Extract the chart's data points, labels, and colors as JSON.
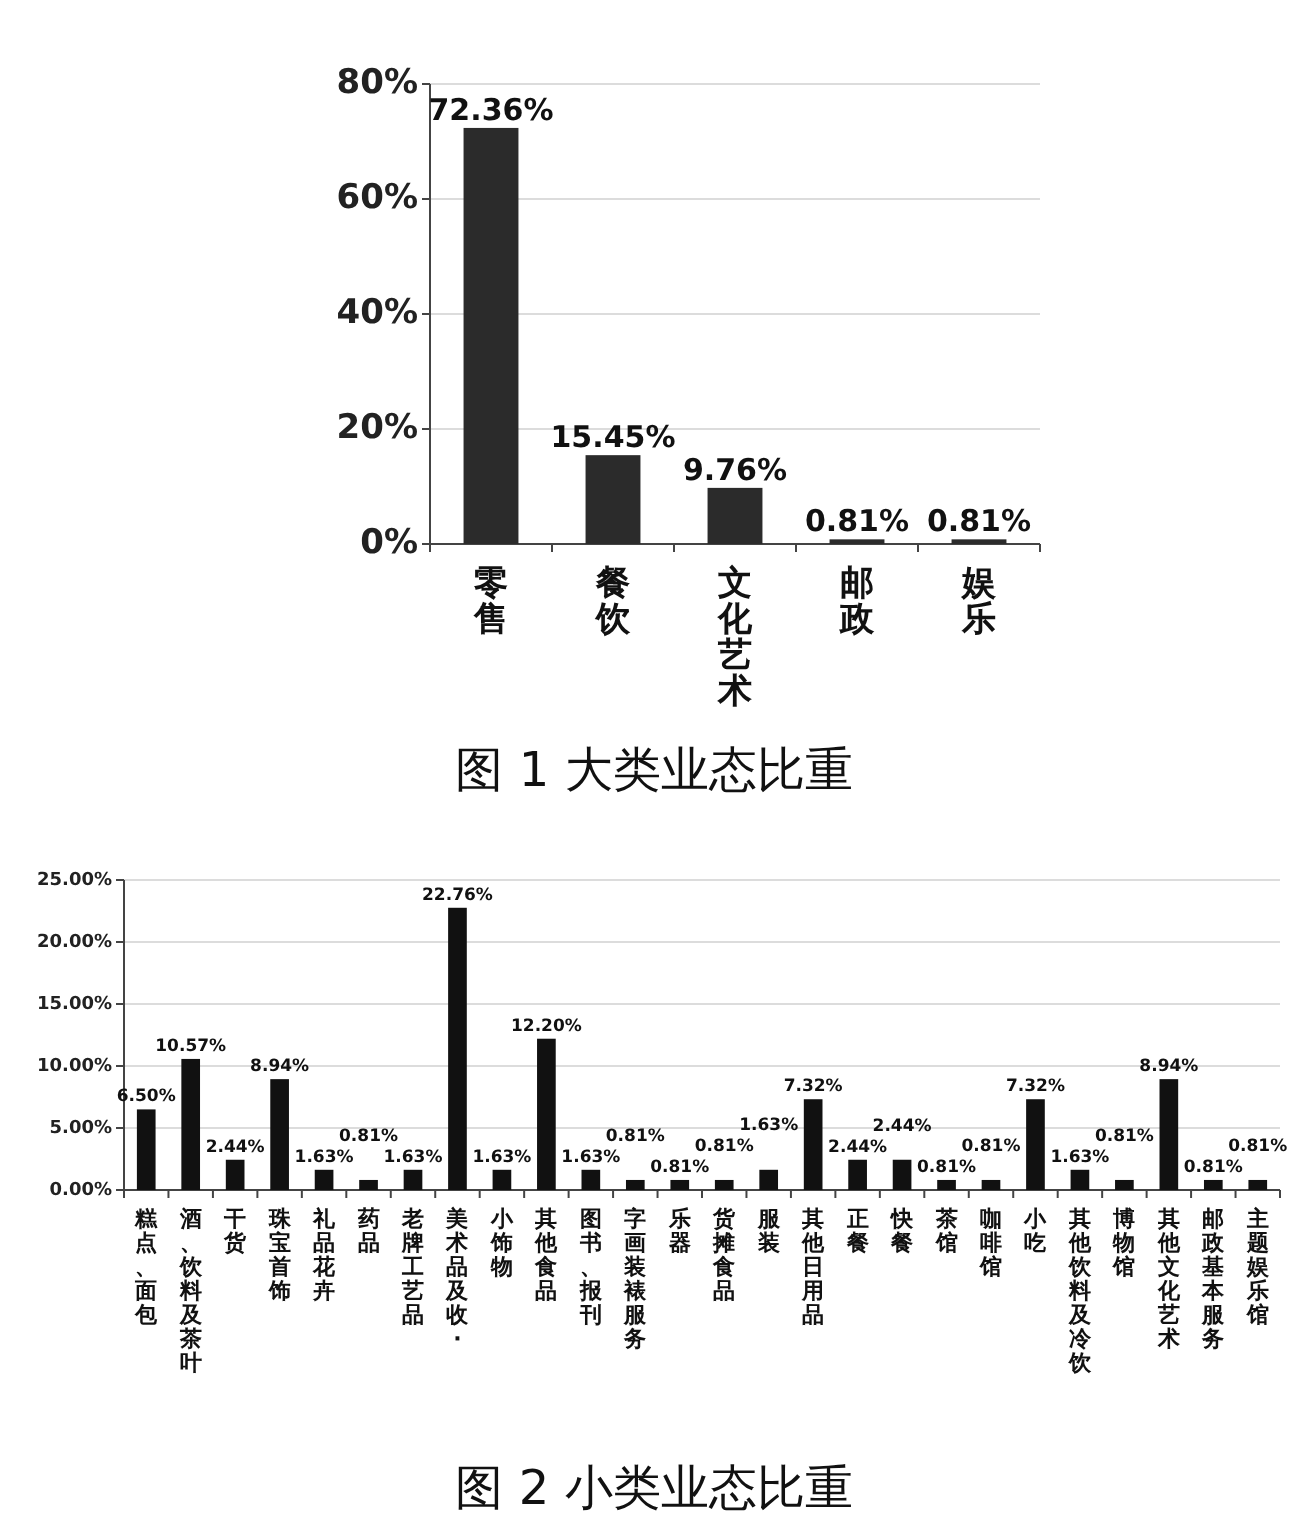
{
  "chart_data": [
    {
      "type": "bar",
      "title": "图 1 大类业态比重",
      "categories": [
        "零售",
        "餐饮",
        "文化艺术",
        "邮政",
        "娱乐"
      ],
      "values": [
        72.36,
        15.45,
        9.76,
        0.81,
        0.81
      ],
      "color": "#2b2b2b",
      "ylim": [
        0,
        80
      ],
      "yticks": [
        {
          "value": 0,
          "label": "0%"
        },
        {
          "value": 20,
          "label": "20%"
        },
        {
          "value": 40,
          "label": "40%"
        },
        {
          "value": 60,
          "label": "60%"
        },
        {
          "value": 80,
          "label": "80%"
        }
      ],
      "grid": "y",
      "value_labels": [
        "72.36%",
        "15.45%",
        "9.76%",
        "0.81%",
        "0.81%"
      ]
    },
    {
      "type": "bar",
      "title": "图 2 小类业态比重",
      "categories": [
        "糕点、面包",
        "酒、饮料及茶叶",
        "干货",
        "珠宝首饰",
        "礼品花卉",
        "药品",
        "老牌工艺品",
        "美术品及收·",
        "小饰物",
        "其他食品",
        "图书、报刊",
        "字画装裱服务",
        "乐器",
        "货摊食品",
        "服装",
        "其他日用品",
        "正餐",
        "快餐",
        "茶馆",
        "咖啡馆",
        "小吃",
        "其他饮料及冷饮",
        "博物馆",
        "其他文化艺术",
        "邮政基本服务",
        "主题娱乐馆"
      ],
      "values": [
        6.5,
        10.57,
        2.44,
        8.94,
        1.63,
        0.81,
        1.63,
        22.76,
        1.63,
        12.2,
        1.63,
        0.81,
        0.81,
        0.81,
        1.63,
        7.32,
        2.44,
        2.44,
        0.81,
        0.81,
        7.32,
        1.63,
        0.81,
        8.94,
        0.81,
        0.81
      ],
      "color": "#111111",
      "ylim": [
        0,
        25
      ],
      "yticks": [
        {
          "value": 0,
          "label": "0.00%"
        },
        {
          "value": 5,
          "label": "5.00%"
        },
        {
          "value": 10,
          "label": "10.00%"
        },
        {
          "value": 15,
          "label": "15.00%"
        },
        {
          "value": 20,
          "label": "20.00%"
        },
        {
          "value": 25,
          "label": "25.00%"
        }
      ],
      "grid": "y",
      "value_labels": [
        "6.50%",
        "10.57%",
        "2.44%",
        "8.94%",
        "1.63%",
        "0.81%",
        "1.63%",
        "22.76%",
        "1.63%",
        "12.20%",
        "1.63%",
        "0.81%",
        "0.81%",
        "0.81%",
        "1.63%",
        "7.32%",
        "2.44%",
        "2.44%",
        "0.81%",
        "0.81%",
        "7.32%",
        "1.63%",
        "0.81%",
        "8.94%",
        "0.81%",
        "0.81%"
      ]
    }
  ]
}
